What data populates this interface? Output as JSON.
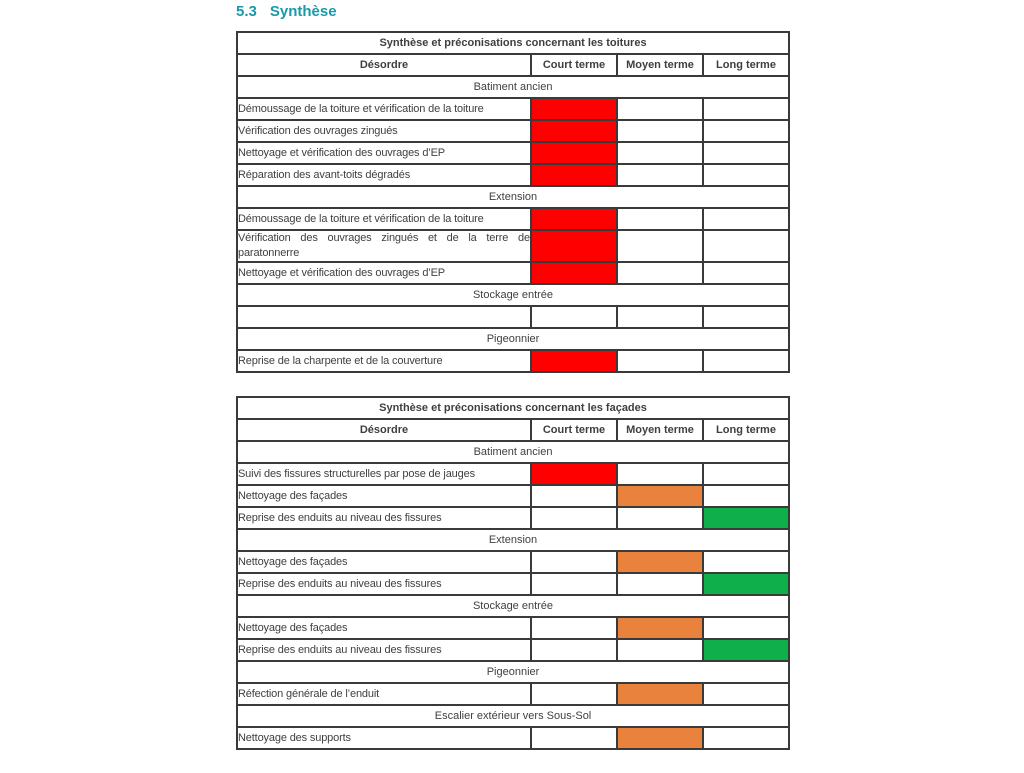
{
  "heading": {
    "number": "5.3",
    "title": "Synthèse"
  },
  "colors": {
    "heading_accent": "#1999a9",
    "border": "#3a3a3a",
    "text": "#3f3f3f",
    "red": "#fe0000",
    "orange": "#e8823c",
    "green": "#0fb04c"
  },
  "columns": [
    "Désordre",
    "Court terme",
    "Moyen terme",
    "Long terme"
  ],
  "tables": [
    {
      "id": "toitures",
      "title": "Synthèse et préconisations concernant les toitures",
      "sections": [
        {
          "name": "Batiment ancien",
          "rows": [
            {
              "label": "Démoussage de la toiture et vérification de la toiture",
              "fills": [
                "red",
                "",
                ""
              ]
            },
            {
              "label": "Vérification des ouvrages zingués",
              "fills": [
                "red",
                "",
                ""
              ]
            },
            {
              "label": "Nettoyage et vérification des ouvrages d’EP",
              "fills": [
                "red",
                "",
                ""
              ]
            },
            {
              "label": "Réparation des avant-toits dégradés",
              "fills": [
                "red",
                "",
                ""
              ]
            }
          ]
        },
        {
          "name": "Extension",
          "rows": [
            {
              "label": "Démoussage de la toiture et vérification de la toiture",
              "fills": [
                "red",
                "",
                ""
              ]
            },
            {
              "label": "Vérification des ouvrages zingués et de la terre de paratonnerre",
              "fills": [
                "red",
                "",
                ""
              ]
            },
            {
              "label": "Nettoyage et vérification des ouvrages d’EP",
              "fills": [
                "red",
                "",
                ""
              ]
            }
          ]
        },
        {
          "name": "Stockage entrée",
          "rows": [
            {
              "label": "",
              "fills": [
                "",
                "",
                ""
              ]
            }
          ]
        },
        {
          "name": "Pigeonnier",
          "rows": [
            {
              "label": "Reprise de la charpente et de la couverture",
              "fills": [
                "red",
                "",
                ""
              ]
            }
          ]
        }
      ]
    },
    {
      "id": "facades",
      "title": "Synthèse et préconisations concernant les façades",
      "sections": [
        {
          "name": "Batiment ancien",
          "rows": [
            {
              "label": "Suivi des fissures structurelles par pose de jauges",
              "fills": [
                "red",
                "",
                ""
              ]
            },
            {
              "label": "Nettoyage des façades",
              "fills": [
                "",
                "orange",
                ""
              ]
            },
            {
              "label": "Reprise des enduits au niveau des fissures",
              "fills": [
                "",
                "",
                "green"
              ]
            }
          ]
        },
        {
          "name": "Extension",
          "rows": [
            {
              "label": "Nettoyage des façades",
              "fills": [
                "",
                "orange",
                ""
              ]
            },
            {
              "label": "Reprise des enduits au niveau des fissures",
              "fills": [
                "",
                "",
                "green"
              ]
            }
          ]
        },
        {
          "name": "Stockage entrée",
          "rows": [
            {
              "label": "Nettoyage des façades",
              "fills": [
                "",
                "orange",
                ""
              ]
            },
            {
              "label": "Reprise des enduits au niveau des fissures",
              "fills": [
                "",
                "",
                "green"
              ]
            }
          ]
        },
        {
          "name": "Pigeonnier",
          "rows": [
            {
              "label": "Réfection générale de l’enduit",
              "fills": [
                "",
                "orange",
                ""
              ]
            }
          ]
        },
        {
          "name": "Escalier extérieur vers Sous-Sol",
          "rows": [
            {
              "label": "Nettoyage des supports",
              "fills": [
                "",
                "orange",
                ""
              ]
            }
          ]
        }
      ]
    }
  ]
}
